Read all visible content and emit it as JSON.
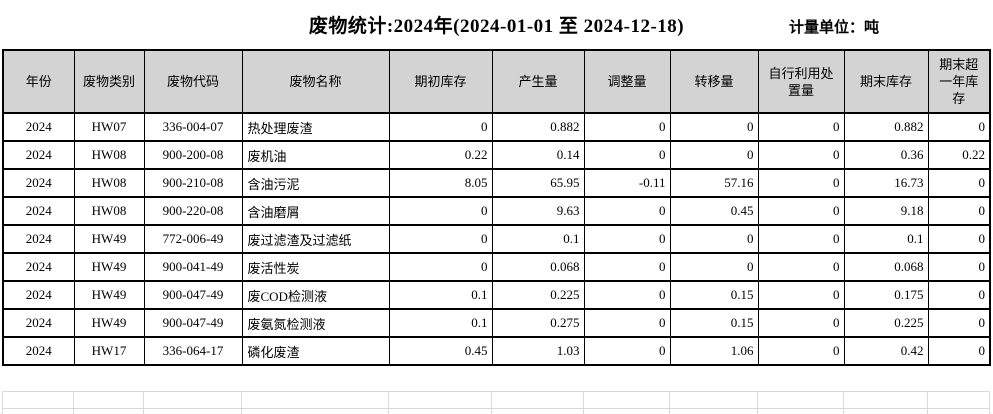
{
  "header": {
    "title": "废物统计:2024年(2024-01-01 至 2024-12-18)",
    "unit_label": "计量单位：吨"
  },
  "table": {
    "columns": [
      "年份",
      "废物类别",
      "废物代码",
      "废物名称",
      "期初库存",
      "产生量",
      "调整量",
      "转移量",
      "自行利用处置量",
      "期末库存",
      "期末超一年库存"
    ],
    "rows": [
      [
        "2024",
        "HW07",
        "336-004-07",
        "热处理废渣",
        "0",
        "0.882",
        "0",
        "0",
        "0",
        "0.882",
        "0"
      ],
      [
        "2024",
        "HW08",
        "900-200-08",
        "废机油",
        "0.22",
        "0.14",
        "0",
        "0",
        "0",
        "0.36",
        "0.22"
      ],
      [
        "2024",
        "HW08",
        "900-210-08",
        "含油污泥",
        "8.05",
        "65.95",
        "-0.11",
        "57.16",
        "0",
        "16.73",
        "0"
      ],
      [
        "2024",
        "HW08",
        "900-220-08",
        "含油磨屑",
        "0",
        "9.63",
        "0",
        "0.45",
        "0",
        "9.18",
        "0"
      ],
      [
        "2024",
        "HW49",
        "772-006-49",
        "废过滤渣及过滤纸",
        "0",
        "0.1",
        "0",
        "0",
        "0",
        "0.1",
        "0"
      ],
      [
        "2024",
        "HW49",
        "900-041-49",
        "废活性炭",
        "0",
        "0.068",
        "0",
        "0",
        "0",
        "0.068",
        "0"
      ],
      [
        "2024",
        "HW49",
        "900-047-49",
        "废COD检测液",
        "0.1",
        "0.225",
        "0",
        "0.15",
        "0",
        "0.175",
        "0"
      ],
      [
        "2024",
        "HW49",
        "900-047-49",
        "废氨氮检测液",
        "0.1",
        "0.275",
        "0",
        "0.15",
        "0",
        "0.225",
        "0"
      ],
      [
        "2024",
        "HW17",
        "336-064-17",
        "磷化废渣",
        "0.45",
        "1.03",
        "0",
        "1.06",
        "0",
        "0.42",
        "0"
      ]
    ]
  },
  "colors": {
    "header_bg": "#d3d3d3",
    "border": "#000000",
    "faint_grid": "#d9d9d9"
  }
}
